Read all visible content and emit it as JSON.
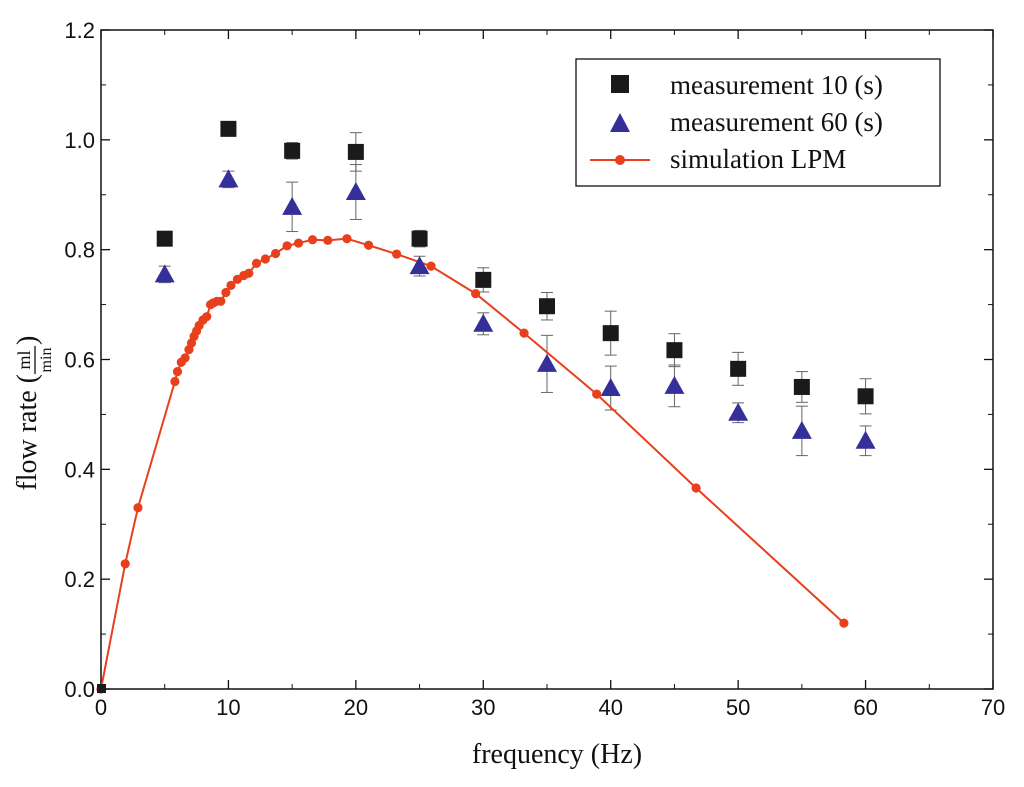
{
  "chart_data": {
    "type": "scatter",
    "title": "",
    "xlabel": "frequency (Hz)",
    "ylabel": {
      "prefix": "flow rate (",
      "numerator": "ml",
      "denominator": "min",
      "suffix": ")"
    },
    "xlim": [
      0,
      70
    ],
    "ylim": [
      0,
      1.2
    ],
    "xticks": [
      0,
      10,
      20,
      30,
      40,
      50,
      60,
      70
    ],
    "xtick_labels": [
      "0",
      "10",
      "20",
      "30",
      "40",
      "50",
      "60",
      "70"
    ],
    "yticks": [
      0,
      0.2,
      0.4,
      0.6,
      0.8,
      1.0,
      1.2
    ],
    "ytick_labels": [
      "0.0",
      "0.2",
      "0.4",
      "0.6",
      "0.8",
      "1.0",
      "1.2"
    ],
    "grid": false,
    "legend_position": "top-right",
    "series": [
      {
        "name": "measurement 10 (s)",
        "marker": "square",
        "color": "#1a1a1a",
        "x": [
          5,
          10,
          15,
          20,
          25,
          30,
          35,
          40,
          45,
          50,
          55,
          60
        ],
        "y": [
          0.82,
          1.02,
          0.98,
          0.978,
          0.82,
          0.745,
          0.697,
          0.648,
          0.617,
          0.583,
          0.55,
          0.533
        ],
        "err": [
          0,
          0.01,
          0.015,
          0.035,
          0.015,
          0.022,
          0.025,
          0.04,
          0.03,
          0.03,
          0.028,
          0.032
        ]
      },
      {
        "name": "measurement 60 (s)",
        "marker": "triangle",
        "color": "#352f9a",
        "x": [
          5,
          10,
          15,
          20,
          25,
          30,
          35,
          40,
          45,
          50,
          55,
          60
        ],
        "y": [
          0.755,
          0.928,
          0.878,
          0.905,
          0.77,
          0.665,
          0.592,
          0.548,
          0.552,
          0.503,
          0.47,
          0.452
        ],
        "err": [
          0.015,
          0.015,
          0.045,
          0.05,
          0.018,
          0.02,
          0.052,
          0.04,
          0.038,
          0.018,
          0.045,
          0.027
        ]
      },
      {
        "name": "simulation LPM",
        "marker": "circle-line",
        "color": "#e8401c",
        "x": [
          0,
          1.9,
          2.9,
          5.8,
          6.0,
          6.3,
          6.6,
          6.9,
          7.1,
          7.3,
          7.5,
          7.7,
          8.0,
          8.3,
          8.6,
          8.8,
          9.1,
          9.4,
          9.8,
          10.2,
          10.7,
          11.2,
          11.6,
          12.2,
          12.9,
          13.7,
          14.6,
          15.5,
          16.6,
          17.8,
          19.3,
          21.0,
          23.2,
          25.9,
          29.4,
          33.2,
          38.9,
          46.7,
          58.3
        ],
        "y": [
          0,
          0.228,
          0.33,
          0.56,
          0.578,
          0.595,
          0.603,
          0.618,
          0.63,
          0.642,
          0.652,
          0.662,
          0.672,
          0.678,
          0.7,
          0.703,
          0.706,
          0.706,
          0.722,
          0.735,
          0.746,
          0.753,
          0.757,
          0.775,
          0.783,
          0.793,
          0.807,
          0.812,
          0.818,
          0.817,
          0.82,
          0.808,
          0.792,
          0.77,
          0.72,
          0.648,
          0.537,
          0.366,
          0.12
        ]
      }
    ]
  }
}
